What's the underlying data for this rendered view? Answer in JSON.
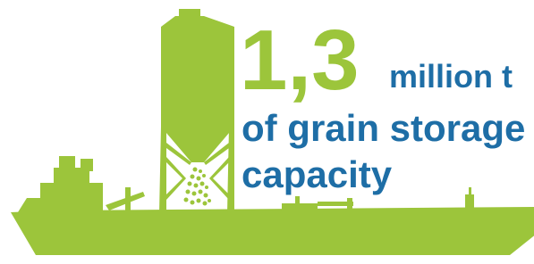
{
  "headline": {
    "number": "1,3",
    "unit": "million t",
    "line2": "of grain storage",
    "line3": "capacity"
  }
}
